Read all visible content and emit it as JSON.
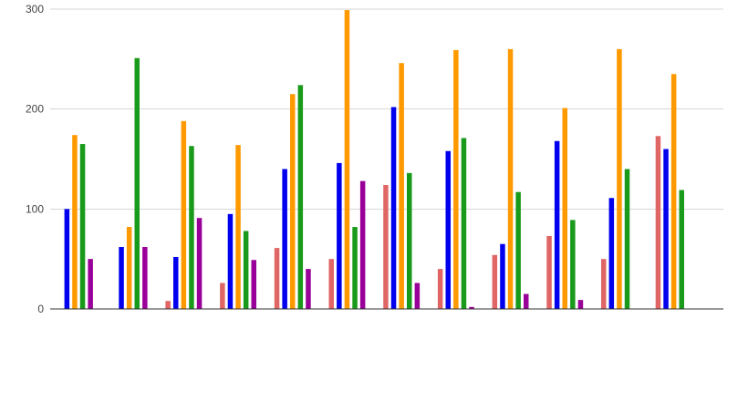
{
  "chart_data": {
    "type": "bar",
    "categories": [
      "",
      "",
      "",
      "",
      "",
      "",
      "",
      "",
      "",
      "",
      "",
      ""
    ],
    "series": [
      {
        "color": "#e06666",
        "values": [
          0,
          0,
          8,
          26,
          61,
          50,
          124,
          40,
          54,
          73,
          50,
          173
        ]
      },
      {
        "color": "#0000ee",
        "values": [
          100,
          62,
          52,
          95,
          140,
          146,
          202,
          158,
          65,
          168,
          111,
          160
        ]
      },
      {
        "color": "#ff9900",
        "values": [
          174,
          82,
          188,
          164,
          215,
          299,
          246,
          259,
          260,
          201,
          260,
          235
        ]
      },
      {
        "color": "#1a9a1a",
        "values": [
          165,
          251,
          163,
          78,
          224,
          82,
          136,
          171,
          117,
          89,
          140,
          119
        ]
      },
      {
        "color": "#990099",
        "values": [
          50,
          62,
          91,
          49,
          40,
          128,
          26,
          2,
          15,
          9,
          0,
          0
        ]
      }
    ],
    "y_ticks": [
      0,
      100,
      200,
      300
    ],
    "y_tick_labels": [
      "0",
      "100",
      "200",
      "300"
    ],
    "ylim": [
      0,
      300
    ],
    "title": "",
    "xlabel": "",
    "ylabel": "",
    "grid": true,
    "legend": "none"
  }
}
